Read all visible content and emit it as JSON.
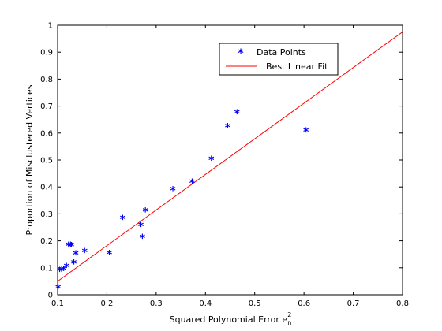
{
  "chart_data": {
    "type": "scatter",
    "title": "",
    "xlabel": "Squared Polynomial Error e",
    "xlabel_superscript": "2",
    "xlabel_subscript": "n",
    "ylabel": "Proportion of Misclustered Vertices",
    "xlim": [
      0.1,
      0.8
    ],
    "ylim": [
      0,
      1
    ],
    "x_ticks": [
      "0.1",
      "0.2",
      "0.3",
      "0.4",
      "0.5",
      "0.6",
      "0.7",
      "0.8"
    ],
    "y_ticks": [
      "0",
      "0.1",
      "0.2",
      "0.3",
      "0.4",
      "0.5",
      "0.6",
      "0.7",
      "0.8",
      "0.9",
      "1"
    ],
    "grid": false,
    "legend_position": "top-right",
    "series": [
      {
        "name": "Data Points",
        "marker": "*",
        "color": "#0000ff",
        "x": [
          0.101,
          0.104,
          0.108,
          0.112,
          0.118,
          0.122,
          0.126,
          0.128,
          0.133,
          0.137,
          0.155,
          0.205,
          0.232,
          0.269,
          0.272,
          0.278,
          0.334,
          0.373,
          0.412,
          0.445,
          0.464,
          0.604
        ],
        "y": [
          0.024,
          0.088,
          0.088,
          0.092,
          0.103,
          0.181,
          0.181,
          0.18,
          0.115,
          0.149,
          0.158,
          0.15,
          0.281,
          0.255,
          0.21,
          0.308,
          0.388,
          0.415,
          0.5,
          0.621,
          0.672,
          0.605
        ]
      },
      {
        "name": "Best Linear Fit",
        "type": "line",
        "color": "#ff0000",
        "x": [
          0.1,
          0.8
        ],
        "y": [
          0.05,
          0.975
        ]
      }
    ]
  }
}
